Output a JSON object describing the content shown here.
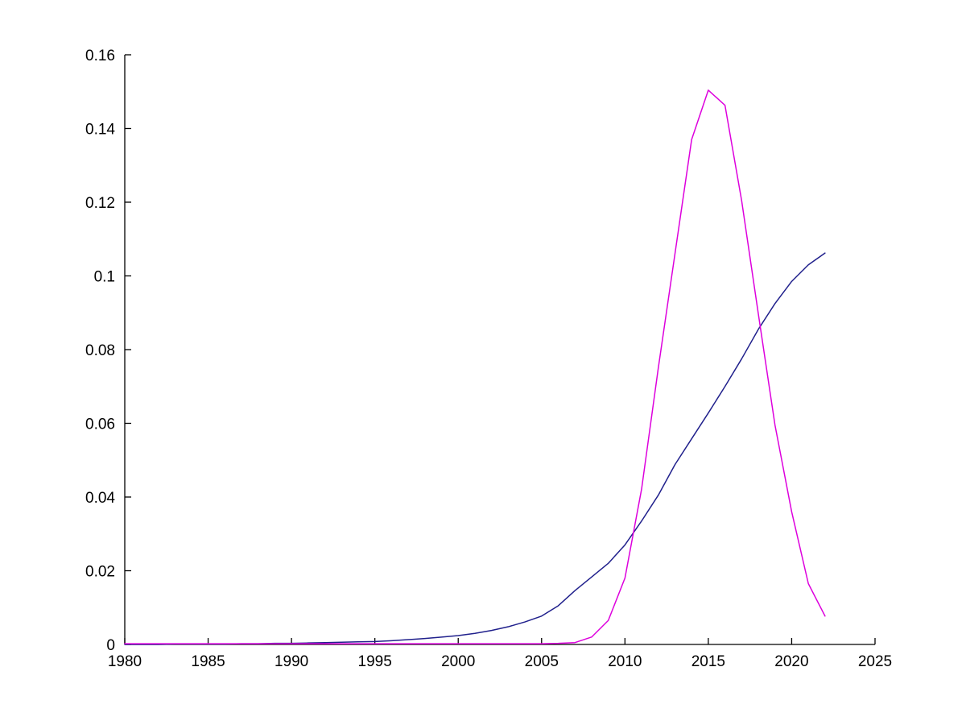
{
  "figure": {
    "background": "#ffffff",
    "axis_color": "#000000",
    "tick_label_color": "#000000"
  },
  "chart_data": {
    "type": "line",
    "title": "",
    "xlabel": "",
    "ylabel": "",
    "xlim": [
      1980,
      2025
    ],
    "ylim": [
      0,
      0.16
    ],
    "grid": false,
    "legend_position": "none",
    "xticks": [
      1980,
      1985,
      1990,
      1995,
      2000,
      2005,
      2010,
      2015,
      2020,
      2025
    ],
    "xtick_labels": [
      "1980",
      "1985",
      "1990",
      "1995",
      "2000",
      "2005",
      "2010",
      "2015",
      "2020",
      "2025"
    ],
    "yticks": [
      0,
      0.02,
      0.04,
      0.06,
      0.08,
      0.1,
      0.12,
      0.14,
      0.16
    ],
    "ytick_labels": [
      "0",
      "0.02",
      "0.04",
      "0.06",
      "0.08",
      "0.1",
      "0.12",
      "0.14",
      "0.16"
    ],
    "x": [
      1980,
      1981,
      1982,
      1983,
      1984,
      1985,
      1986,
      1987,
      1988,
      1989,
      1990,
      1991,
      1992,
      1993,
      1994,
      1995,
      1996,
      1997,
      1998,
      1999,
      2000,
      2001,
      2002,
      2003,
      2004,
      2005,
      2006,
      2007,
      2008,
      2009,
      2010,
      2011,
      2012,
      2013,
      2014,
      2015,
      2016,
      2017,
      2018,
      2019,
      2020,
      2021,
      2022
    ],
    "series": [
      {
        "name": "dark-blue-cumulative-curve",
        "color": "#20208c",
        "values": [
          0.0,
          0.0,
          0.0,
          0.0001,
          0.0001,
          0.0001,
          0.0001,
          0.0002,
          0.0002,
          0.0003,
          0.0003,
          0.0004,
          0.0005,
          0.0006,
          0.0007,
          0.0008,
          0.001,
          0.0013,
          0.0016,
          0.002,
          0.0024,
          0.003,
          0.0038,
          0.0048,
          0.0061,
          0.0077,
          0.0105,
          0.0146,
          0.0183,
          0.022,
          0.027,
          0.0335,
          0.0405,
          0.0488,
          0.0558,
          0.0628,
          0.07,
          0.0775,
          0.0855,
          0.0925,
          0.0985,
          0.103,
          0.1062
        ]
      },
      {
        "name": "magenta-bell-curve",
        "color": "#dd00dd",
        "values": [
          0.0002,
          0.0002,
          0.0002,
          0.0002,
          0.0002,
          0.0002,
          0.0002,
          0.0002,
          0.0002,
          0.0002,
          0.0002,
          0.0002,
          0.0002,
          0.0002,
          0.0002,
          0.0002,
          0.0002,
          0.0002,
          0.0002,
          0.0002,
          0.0002,
          0.0002,
          0.0002,
          0.0002,
          0.0002,
          0.0002,
          0.0003,
          0.0005,
          0.002,
          0.0065,
          0.018,
          0.0422,
          0.075,
          0.106,
          0.137,
          0.1504,
          0.1463,
          0.1204,
          0.0897,
          0.0595,
          0.036,
          0.0165,
          0.0077
        ]
      }
    ]
  }
}
